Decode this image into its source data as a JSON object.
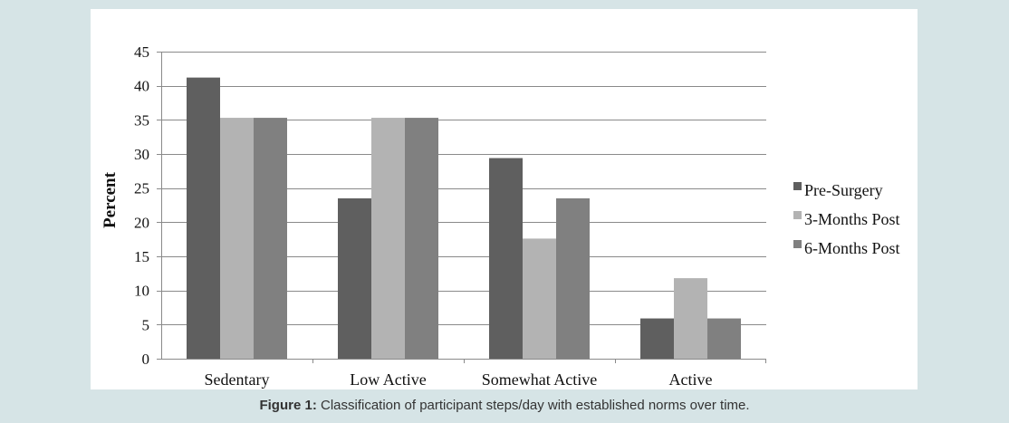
{
  "chart_data": {
    "type": "bar",
    "ylabel": "Percent",
    "ylim": [
      0,
      45
    ],
    "yticks": [
      0,
      5,
      10,
      15,
      20,
      25,
      30,
      35,
      40,
      45
    ],
    "grid": true,
    "legend_position": "right",
    "categories": [
      "Sedentary",
      "Low Active",
      "Somewhat Active",
      "Active"
    ],
    "series": [
      {
        "name": "Pre-Surgery",
        "color": "#5f5f5f",
        "values": [
          41.2,
          23.5,
          29.4,
          5.9
        ]
      },
      {
        "name": "3-Months Post",
        "color": "#b3b3b3",
        "values": [
          35.3,
          35.3,
          17.6,
          11.8
        ]
      },
      {
        "name": "6-Months Post",
        "color": "#808080",
        "values": [
          35.3,
          35.3,
          23.5,
          5.9
        ]
      }
    ]
  },
  "caption": {
    "label": "Figure 1:",
    "text": " Classification of participant steps/day with established norms over time."
  }
}
